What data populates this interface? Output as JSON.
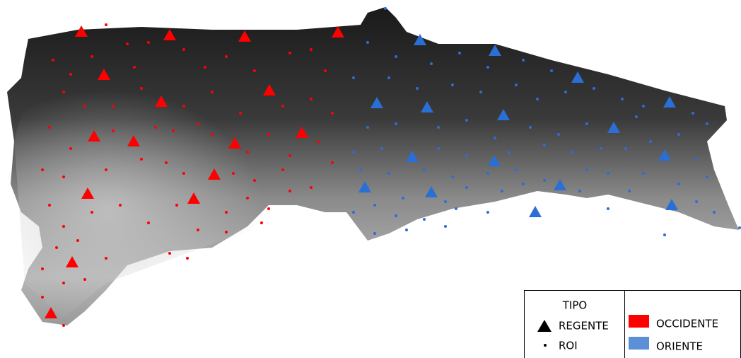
{
  "legend": {
    "title": "TIPO",
    "items": [
      "REGENTE",
      "ROI"
    ],
    "regions": [
      "OCCIDENTE",
      "ORIENTE"
    ]
  }
}
